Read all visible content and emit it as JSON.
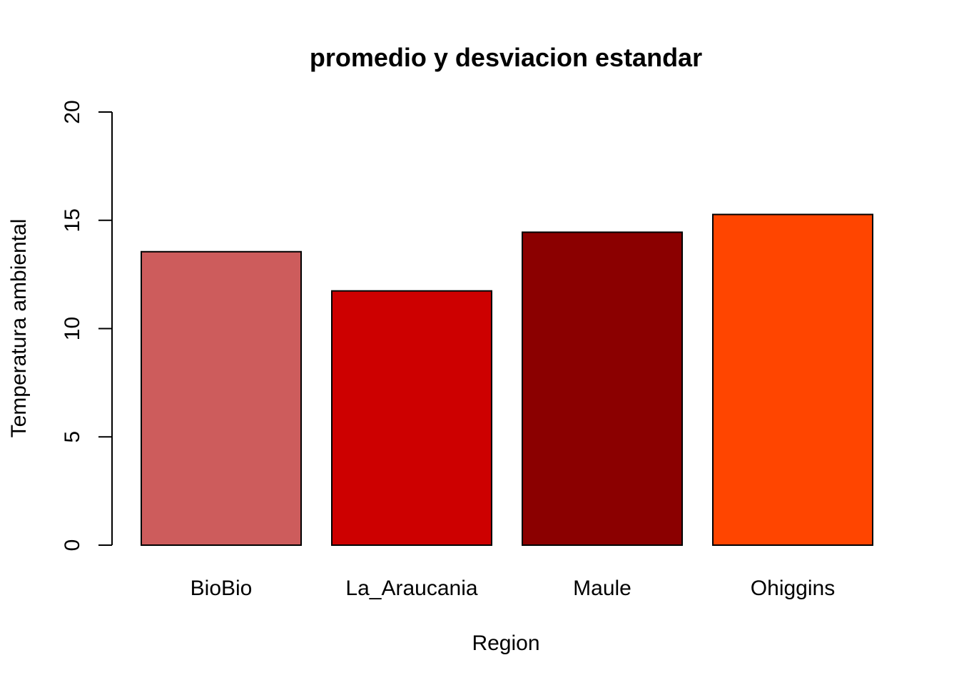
{
  "chart_data": {
    "type": "bar",
    "title": "promedio y desviacion estandar",
    "xlabel": "Region",
    "ylabel": "Temperatura ambiental",
    "categories": [
      "BioBio",
      "La_Araucania",
      "Maule",
      "Ohiggins"
    ],
    "values": [
      13.55,
      11.74,
      14.45,
      15.27
    ],
    "colors": [
      "#CD5C5C",
      "#CD0000",
      "#8B0000",
      "#FF4500"
    ],
    "ylim": [
      0,
      20
    ],
    "yticks": [
      0,
      5,
      10,
      15,
      20
    ],
    "grid": false,
    "legend": "none"
  }
}
